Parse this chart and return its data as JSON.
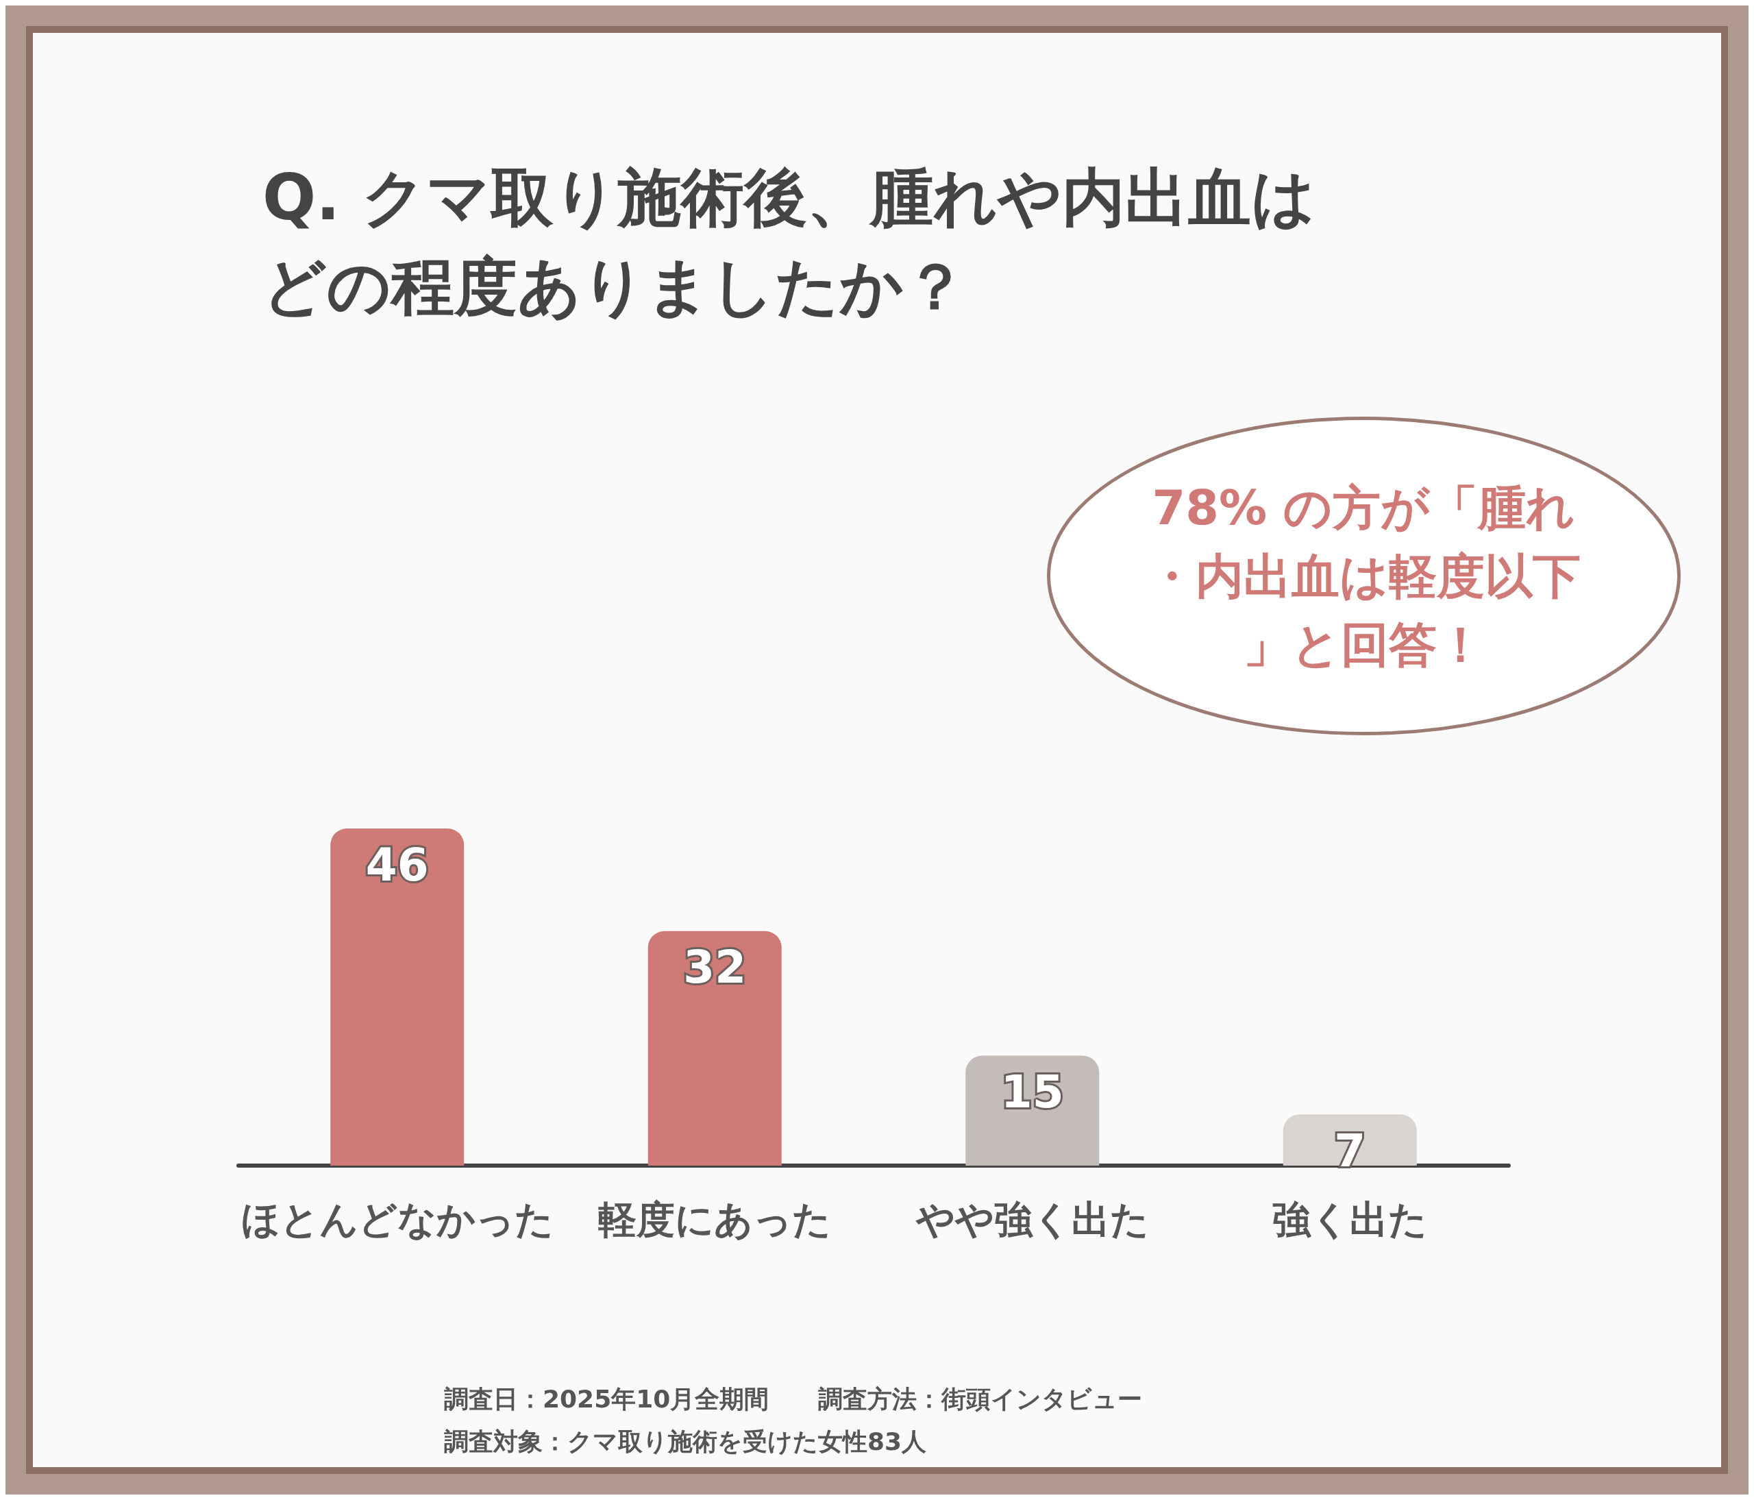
{
  "chart_data": {
    "type": "bar",
    "title": "Q. クマ取り施術後、腫れや内出血はどの程度ありましたか？",
    "categories": [
      "ほとんどなかった",
      "軽度にあった",
      "やや強く出た",
      "強く出た"
    ],
    "values": [
      46,
      32,
      15,
      7
    ],
    "colors": [
      "#cf7a76",
      "#cf7a76",
      "#c4bcb9",
      "#d9d4d2"
    ],
    "data_labels": true,
    "grid": false,
    "annotations": [
      "78% の方が「腫れ・内出血は軽度以下」と回答！",
      "調査日：2025年10月全期間　　調査方法：街頭インタビュー",
      "調査対象：クマ取り施術を受けた女性83人"
    ]
  }
}
